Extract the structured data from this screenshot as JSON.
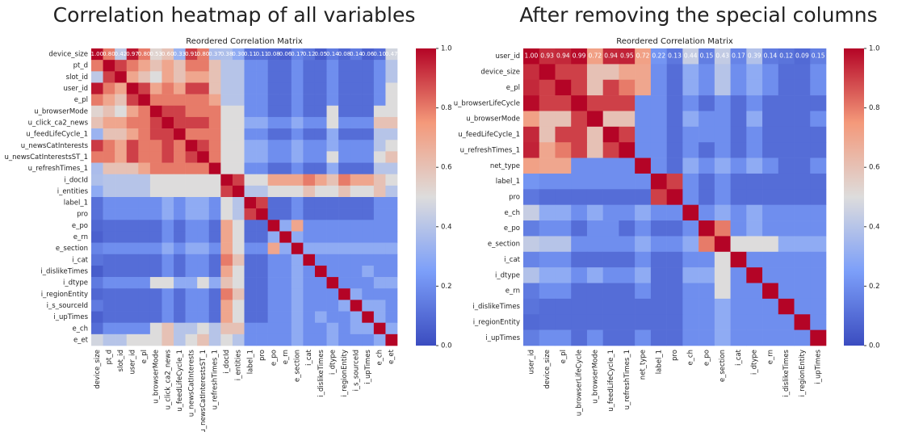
{
  "chart_data": [
    {
      "type": "heatmap",
      "heading": "Correlation heatmap of all variables",
      "title": "Reordered Correlation Matrix",
      "labels": [
        "device_size",
        "pt_d",
        "slot_id",
        "user_id",
        "e_pl",
        "u_browserMode",
        "u_click_ca2_news",
        "u_feedLifeCycle_1",
        "u_newsCatInterests",
        "u_newsCatInterestsST_1",
        "u_refreshTimes_1",
        "i_docId",
        "i_entities",
        "label_1",
        "pro",
        "e_po",
        "e_rn",
        "e_section",
        "i_cat",
        "i_dislikeTimes",
        "i_dtype",
        "i_regionEntity",
        "i_s_sourceId",
        "i_upTimes",
        "e_ch",
        "e_et"
      ],
      "values": [
        [
          1.0,
          0.8,
          0.42,
          0.97,
          0.8,
          0.53,
          0.6,
          0.33,
          0.91,
          0.8,
          0.37,
          0.38,
          0.3,
          0.11,
          0.11,
          0.08,
          0.06,
          0.17,
          0.12,
          0.05,
          0.14,
          0.08,
          0.14,
          0.06,
          0.1,
          0.47
        ],
        [
          0.8,
          1,
          0.9,
          0.8,
          0.7,
          0.6,
          0.7,
          0.6,
          0.8,
          0.8,
          0.6,
          0.4,
          0.4,
          0.2,
          0.2,
          0.1,
          0.1,
          0.2,
          0.1,
          0.1,
          0.2,
          0.1,
          0.1,
          0.1,
          0.2,
          0.4
        ],
        [
          0.42,
          0.9,
          1,
          0.7,
          0.6,
          0.5,
          0.7,
          0.6,
          0.7,
          0.7,
          0.6,
          0.4,
          0.4,
          0.2,
          0.2,
          0.1,
          0.1,
          0.2,
          0.1,
          0.1,
          0.2,
          0.1,
          0.1,
          0.1,
          0.2,
          0.4
        ],
        [
          0.97,
          0.8,
          0.7,
          1,
          0.9,
          0.7,
          0.8,
          0.7,
          0.9,
          0.9,
          0.6,
          0.4,
          0.4,
          0.2,
          0.2,
          0.1,
          0.1,
          0.2,
          0.1,
          0.1,
          0.2,
          0.1,
          0.1,
          0.1,
          0.2,
          0.5
        ],
        [
          0.8,
          0.7,
          0.6,
          0.9,
          1,
          0.8,
          0.8,
          0.8,
          0.8,
          0.8,
          0.7,
          0.4,
          0.4,
          0.2,
          0.2,
          0.1,
          0.1,
          0.2,
          0.1,
          0.1,
          0.2,
          0.1,
          0.1,
          0.1,
          0.2,
          0.5
        ],
        [
          0.53,
          0.6,
          0.5,
          0.7,
          0.8,
          1,
          0.9,
          0.9,
          0.8,
          0.8,
          0.8,
          0.5,
          0.5,
          0.2,
          0.2,
          0.1,
          0.1,
          0.2,
          0.1,
          0.1,
          0.5,
          0.1,
          0.1,
          0.1,
          0.5,
          0.5
        ],
        [
          0.6,
          0.7,
          0.7,
          0.8,
          0.8,
          0.9,
          1,
          0.9,
          0.9,
          0.9,
          0.8,
          0.5,
          0.5,
          0.3,
          0.3,
          0.2,
          0.2,
          0.3,
          0.2,
          0.2,
          0.5,
          0.2,
          0.2,
          0.2,
          0.6,
          0.6
        ],
        [
          0.33,
          0.6,
          0.6,
          0.7,
          0.8,
          0.9,
          0.9,
          1,
          0.8,
          0.8,
          0.8,
          0.5,
          0.5,
          0.2,
          0.2,
          0.1,
          0.1,
          0.2,
          0.1,
          0.1,
          0.3,
          0.1,
          0.1,
          0.1,
          0.4,
          0.4
        ],
        [
          0.91,
          0.8,
          0.7,
          0.9,
          0.8,
          0.8,
          0.9,
          0.8,
          1,
          0.9,
          0.8,
          0.5,
          0.5,
          0.3,
          0.3,
          0.2,
          0.2,
          0.3,
          0.2,
          0.2,
          0.3,
          0.2,
          0.2,
          0.2,
          0.4,
          0.5
        ],
        [
          0.8,
          0.8,
          0.7,
          0.9,
          0.8,
          0.8,
          0.9,
          0.8,
          0.9,
          1,
          0.8,
          0.5,
          0.5,
          0.3,
          0.3,
          0.2,
          0.2,
          0.3,
          0.2,
          0.2,
          0.5,
          0.2,
          0.2,
          0.2,
          0.5,
          0.6
        ],
        [
          0.37,
          0.6,
          0.6,
          0.6,
          0.7,
          0.8,
          0.8,
          0.8,
          0.8,
          0.8,
          1,
          0.5,
          0.5,
          0.2,
          0.2,
          0.1,
          0.1,
          0.2,
          0.1,
          0.1,
          0.3,
          0.1,
          0.1,
          0.1,
          0.4,
          0.4
        ],
        [
          0.38,
          0.4,
          0.4,
          0.4,
          0.4,
          0.5,
          0.5,
          0.5,
          0.5,
          0.5,
          0.5,
          1,
          0.9,
          0.5,
          0.5,
          0.7,
          0.7,
          0.7,
          0.8,
          0.7,
          0.6,
          0.8,
          0.7,
          0.7,
          0.6,
          0.5
        ],
        [
          0.3,
          0.4,
          0.4,
          0.4,
          0.4,
          0.5,
          0.5,
          0.5,
          0.5,
          0.5,
          0.5,
          0.9,
          1,
          0.4,
          0.4,
          0.5,
          0.5,
          0.5,
          0.6,
          0.5,
          0.5,
          0.6,
          0.5,
          0.5,
          0.6,
          0.4
        ],
        [
          0.11,
          0.2,
          0.2,
          0.2,
          0.2,
          0.2,
          0.3,
          0.2,
          0.3,
          0.3,
          0.2,
          0.5,
          0.4,
          1,
          0.9,
          0.1,
          0.1,
          0.2,
          0.1,
          0.1,
          0.1,
          0.1,
          0.1,
          0.1,
          0.2,
          0.2
        ],
        [
          0.11,
          0.2,
          0.2,
          0.2,
          0.2,
          0.2,
          0.3,
          0.2,
          0.3,
          0.3,
          0.2,
          0.5,
          0.4,
          0.9,
          1,
          0.1,
          0.1,
          0.2,
          0.1,
          0.1,
          0.1,
          0.1,
          0.1,
          0.1,
          0.2,
          0.2
        ],
        [
          0.08,
          0.1,
          0.1,
          0.1,
          0.1,
          0.1,
          0.2,
          0.1,
          0.2,
          0.2,
          0.1,
          0.7,
          0.5,
          0.1,
          0.1,
          1,
          0.3,
          0.7,
          0.2,
          0.2,
          0.2,
          0.2,
          0.2,
          0.2,
          0.2,
          0.2
        ],
        [
          0.06,
          0.1,
          0.1,
          0.1,
          0.1,
          0.1,
          0.2,
          0.1,
          0.2,
          0.2,
          0.1,
          0.7,
          0.5,
          0.1,
          0.1,
          0.3,
          1,
          0.3,
          0.2,
          0.2,
          0.2,
          0.2,
          0.2,
          0.2,
          0.2,
          0.2
        ],
        [
          0.17,
          0.2,
          0.2,
          0.2,
          0.2,
          0.2,
          0.3,
          0.2,
          0.3,
          0.3,
          0.2,
          0.7,
          0.5,
          0.2,
          0.2,
          0.7,
          0.3,
          1,
          0.3,
          0.3,
          0.3,
          0.3,
          0.3,
          0.3,
          0.3,
          0.3
        ],
        [
          0.12,
          0.1,
          0.1,
          0.1,
          0.1,
          0.1,
          0.2,
          0.1,
          0.2,
          0.2,
          0.1,
          0.8,
          0.6,
          0.1,
          0.1,
          0.2,
          0.2,
          0.3,
          1,
          0.2,
          0.2,
          0.2,
          0.2,
          0.2,
          0.2,
          0.2
        ],
        [
          0.05,
          0.1,
          0.1,
          0.1,
          0.1,
          0.1,
          0.2,
          0.1,
          0.2,
          0.2,
          0.1,
          0.7,
          0.5,
          0.1,
          0.1,
          0.2,
          0.2,
          0.3,
          0.2,
          1,
          0.2,
          0.2,
          0.2,
          0.3,
          0.2,
          0.2
        ],
        [
          0.14,
          0.2,
          0.2,
          0.2,
          0.2,
          0.5,
          0.5,
          0.3,
          0.3,
          0.5,
          0.3,
          0.6,
          0.5,
          0.1,
          0.1,
          0.2,
          0.2,
          0.3,
          0.2,
          0.2,
          1,
          0.2,
          0.2,
          0.2,
          0.3,
          0.3
        ],
        [
          0.08,
          0.1,
          0.1,
          0.1,
          0.1,
          0.1,
          0.2,
          0.1,
          0.2,
          0.2,
          0.1,
          0.8,
          0.6,
          0.1,
          0.1,
          0.2,
          0.2,
          0.3,
          0.2,
          0.2,
          0.2,
          1,
          0.3,
          0.2,
          0.2,
          0.2
        ],
        [
          0.14,
          0.1,
          0.1,
          0.1,
          0.1,
          0.1,
          0.2,
          0.1,
          0.2,
          0.2,
          0.1,
          0.7,
          0.5,
          0.1,
          0.1,
          0.2,
          0.2,
          0.3,
          0.2,
          0.2,
          0.2,
          0.3,
          1,
          0.3,
          0.3,
          0.2
        ],
        [
          0.06,
          0.1,
          0.1,
          0.1,
          0.1,
          0.1,
          0.2,
          0.1,
          0.2,
          0.2,
          0.1,
          0.7,
          0.5,
          0.1,
          0.1,
          0.2,
          0.2,
          0.3,
          0.2,
          0.3,
          0.2,
          0.2,
          0.3,
          1,
          0.3,
          0.2
        ],
        [
          0.1,
          0.2,
          0.2,
          0.2,
          0.2,
          0.5,
          0.6,
          0.4,
          0.4,
          0.5,
          0.4,
          0.6,
          0.6,
          0.2,
          0.2,
          0.2,
          0.2,
          0.3,
          0.2,
          0.2,
          0.3,
          0.2,
          0.3,
          0.3,
          1,
          0.3
        ],
        [
          0.47,
          0.4,
          0.4,
          0.5,
          0.5,
          0.5,
          0.6,
          0.4,
          0.5,
          0.6,
          0.4,
          0.5,
          0.4,
          0.2,
          0.2,
          0.2,
          0.2,
          0.3,
          0.2,
          0.2,
          0.3,
          0.2,
          0.2,
          0.2,
          0.3,
          1
        ]
      ],
      "value_labels": [
        "1.00",
        "0.80",
        "0.42",
        "0.97",
        "0.80",
        "0.53",
        "0.60",
        "0.33",
        "0.91",
        "0.80",
        "0.37",
        "0.38",
        "0.30",
        "0.11",
        "0.11",
        "0.08",
        "0.06",
        "0.17",
        "0.12",
        "0.05",
        "0.14",
        "0.08",
        "0.14",
        "0.06",
        "0.10",
        "0.47"
      ],
      "colorbar": {
        "lim": [
          0,
          1
        ],
        "ticks": [
          {
            "value": 0,
            "label": "0.0"
          },
          0.2,
          0.4,
          0.6,
          0.8,
          {
            "value": 1,
            "label": "1.0"
          }
        ]
      }
    },
    {
      "type": "heatmap",
      "heading": "After removing the special columns",
      "title": "Reordered Correlation Matrix",
      "labels": [
        "user_id",
        "device_size",
        "e_pl",
        "u_browserLifeCycle",
        "u_browserMode",
        "u_feedLifeCycle_1",
        "u_refreshTimes_1",
        "net_type",
        "label_1",
        "pro",
        "e_ch",
        "e_po",
        "e_section",
        "i_cat",
        "i_dtype",
        "e_rn",
        "i_dislikeTimes",
        "i_regionEntity",
        "i_upTimes"
      ],
      "values": [
        [
          1.0,
          0.93,
          0.94,
          0.99,
          0.72,
          0.94,
          0.95,
          0.72,
          0.22,
          0.13,
          0.44,
          0.15,
          0.43,
          0.17,
          0.39,
          0.14,
          0.12,
          0.09,
          0.15
        ],
        [
          0.93,
          1,
          0.9,
          0.9,
          0.6,
          0.6,
          0.7,
          0.7,
          0.2,
          0.1,
          0.3,
          0.2,
          0.4,
          0.2,
          0.3,
          0.2,
          0.1,
          0.1,
          0.2
        ],
        [
          0.94,
          0.9,
          1,
          0.9,
          0.6,
          0.9,
          0.8,
          0.7,
          0.2,
          0.1,
          0.3,
          0.2,
          0.4,
          0.2,
          0.3,
          0.2,
          0.1,
          0.1,
          0.2
        ],
        [
          0.99,
          0.9,
          0.9,
          1,
          0.9,
          0.9,
          0.9,
          0.2,
          0.2,
          0.1,
          0.2,
          0.1,
          0.2,
          0.1,
          0.2,
          0.1,
          0.1,
          0.1,
          0.1
        ],
        [
          0.72,
          0.6,
          0.6,
          0.9,
          1,
          0.6,
          0.6,
          0.2,
          0.2,
          0.1,
          0.3,
          0.2,
          0.2,
          0.1,
          0.3,
          0.1,
          0.1,
          0.1,
          0.2
        ],
        [
          0.94,
          0.6,
          0.9,
          0.9,
          0.6,
          1,
          0.9,
          0.2,
          0.2,
          0.1,
          0.2,
          0.2,
          0.2,
          0.1,
          0.2,
          0.1,
          0.1,
          0.1,
          0.1
        ],
        [
          0.95,
          0.7,
          0.8,
          0.9,
          0.6,
          0.9,
          1,
          0.2,
          0.2,
          0.1,
          0.2,
          0.1,
          0.2,
          0.1,
          0.2,
          0.1,
          0.1,
          0.1,
          0.1
        ],
        [
          0.72,
          0.7,
          0.7,
          0.2,
          0.2,
          0.2,
          0.2,
          1,
          0.2,
          0.1,
          0.3,
          0.2,
          0.3,
          0.2,
          0.3,
          0.2,
          0.1,
          0.1,
          0.2
        ],
        [
          0.22,
          0.2,
          0.2,
          0.2,
          0.2,
          0.2,
          0.2,
          0.2,
          1,
          0.9,
          0.2,
          0.1,
          0.2,
          0.1,
          0.1,
          0.1,
          0.1,
          0.1,
          0.1
        ],
        [
          0.13,
          0.1,
          0.1,
          0.1,
          0.1,
          0.1,
          0.1,
          0.1,
          0.9,
          1,
          0.2,
          0.1,
          0.2,
          0.1,
          0.1,
          0.1,
          0.1,
          0.1,
          0.1
        ],
        [
          0.44,
          0.3,
          0.3,
          0.2,
          0.3,
          0.2,
          0.2,
          0.3,
          0.2,
          0.2,
          1,
          0.2,
          0.3,
          0.2,
          0.3,
          0.2,
          0.2,
          0.2,
          0.2
        ],
        [
          0.15,
          0.2,
          0.2,
          0.1,
          0.2,
          0.2,
          0.1,
          0.2,
          0.1,
          0.1,
          0.2,
          1,
          0.8,
          0.2,
          0.3,
          0.2,
          0.2,
          0.2,
          0.2
        ],
        [
          0.43,
          0.4,
          0.4,
          0.2,
          0.2,
          0.2,
          0.2,
          0.3,
          0.2,
          0.2,
          0.3,
          0.8,
          1,
          0.5,
          0.5,
          0.5,
          0.3,
          0.3,
          0.3
        ],
        [
          0.17,
          0.2,
          0.2,
          0.1,
          0.1,
          0.1,
          0.1,
          0.2,
          0.1,
          0.1,
          0.2,
          0.2,
          0.5,
          1,
          0.2,
          0.2,
          0.2,
          0.2,
          0.2
        ],
        [
          0.39,
          0.3,
          0.3,
          0.2,
          0.3,
          0.2,
          0.2,
          0.3,
          0.1,
          0.1,
          0.3,
          0.3,
          0.5,
          0.2,
          1,
          0.2,
          0.2,
          0.2,
          0.2
        ],
        [
          0.14,
          0.2,
          0.2,
          0.1,
          0.1,
          0.1,
          0.1,
          0.2,
          0.1,
          0.1,
          0.2,
          0.2,
          0.5,
          0.2,
          0.2,
          1,
          0.2,
          0.2,
          0.2
        ],
        [
          0.12,
          0.1,
          0.1,
          0.1,
          0.1,
          0.1,
          0.1,
          0.1,
          0.1,
          0.1,
          0.2,
          0.2,
          0.3,
          0.2,
          0.2,
          0.2,
          1,
          0.2,
          0.2
        ],
        [
          0.09,
          0.1,
          0.1,
          0.1,
          0.1,
          0.1,
          0.1,
          0.1,
          0.1,
          0.1,
          0.2,
          0.2,
          0.3,
          0.2,
          0.2,
          0.2,
          0.2,
          1,
          0.2
        ],
        [
          0.15,
          0.2,
          0.2,
          0.1,
          0.2,
          0.1,
          0.1,
          0.2,
          0.1,
          0.1,
          0.2,
          0.2,
          0.3,
          0.2,
          0.2,
          0.2,
          0.2,
          0.2,
          1
        ]
      ],
      "value_labels": [
        "1.00",
        "0.93",
        "0.94",
        "0.99",
        "0.72",
        "0.94",
        "0.95",
        "0.72",
        "0.22",
        "0.13",
        "0.44",
        "0.15",
        "0.43",
        "0.17",
        "0.39",
        "0.14",
        "0.12",
        "0.09",
        "0.15"
      ],
      "colorbar": {
        "lim": [
          0,
          1
        ],
        "ticks": [
          {
            "value": 0,
            "label": "0.0"
          },
          0.2,
          0.4,
          0.6,
          0.8,
          {
            "value": 1,
            "label": "1.0"
          }
        ]
      }
    }
  ]
}
